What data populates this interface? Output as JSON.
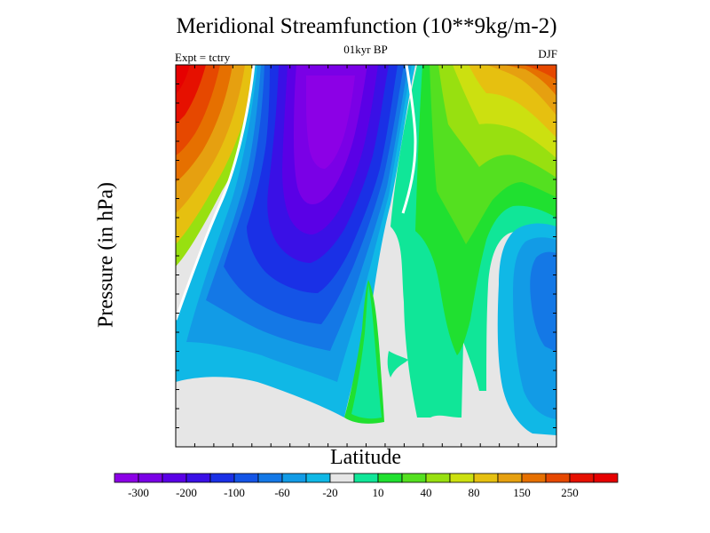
{
  "chart_data": {
    "type": "heatmap",
    "title": "Meridional Streamfunction (10**9kg/m-2)",
    "subtitles": {
      "left": "Expt = tctry",
      "center": "01kyr BP",
      "right": "DJF"
    },
    "xlabel": "Latitude",
    "ylabel": "Pressure (in hPa)",
    "colorbar": {
      "levels": [
        -300,
        -250,
        -200,
        -150,
        -100,
        -80,
        -60,
        -40,
        -20,
        -10,
        10,
        20,
        40,
        60,
        80,
        100,
        150,
        200,
        250,
        300
      ],
      "tick_labels": [
        "-300",
        "-200",
        "-100",
        "-60",
        "-20",
        "10",
        "40",
        "80",
        "150",
        "250"
      ],
      "colors": [
        "#8c00e6",
        "#7a00e6",
        "#5a00e6",
        "#3a10e6",
        "#1a30e6",
        "#1454e6",
        "#1478e6",
        "#129be6",
        "#10b8e6",
        "#e6e6e6",
        "#10e698",
        "#20e030",
        "#54e020",
        "#98e010",
        "#cce010",
        "#e6c010",
        "#e6a010",
        "#e67000",
        "#e64800",
        "#e61000",
        "#e60000"
      ]
    }
  }
}
